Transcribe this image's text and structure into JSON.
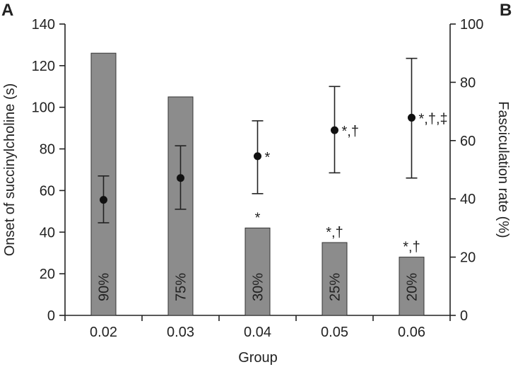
{
  "chart_data": {
    "type": "bar",
    "panel_label_left": "A",
    "panel_label_right": "B",
    "xlabel": "Group",
    "ylabel_left": "Onset of succinylcholine (s)",
    "ylabel_right": "Fasciculation rate (%)",
    "categories": [
      "0.02",
      "0.03",
      "0.04",
      "0.05",
      "0.06"
    ],
    "y_left": {
      "lim": [
        0,
        140
      ],
      "ticks": [
        0,
        20,
        40,
        60,
        80,
        100,
        120,
        140
      ]
    },
    "y_right": {
      "lim": [
        0,
        100
      ],
      "ticks": [
        0,
        20,
        40,
        60,
        80,
        100
      ]
    },
    "bars": {
      "axis": "right",
      "values": [
        90,
        75,
        30,
        25,
        20
      ],
      "labels": [
        "90%",
        "75%",
        "30%",
        "25%",
        "20%"
      ],
      "annotations": [
        "",
        "",
        "*",
        "*,†",
        "*,†"
      ],
      "color": "#8c8c8c"
    },
    "points": {
      "axis": "left",
      "means": [
        55.5,
        66,
        76.5,
        89,
        95
      ],
      "err_low": [
        44.5,
        51,
        58.5,
        68.5,
        66
      ],
      "err_high": [
        67,
        81.5,
        93.5,
        110,
        123.5
      ],
      "annotations": [
        "",
        "",
        "*",
        "*,†",
        "*,†,‡"
      ],
      "color": "#111111"
    }
  }
}
